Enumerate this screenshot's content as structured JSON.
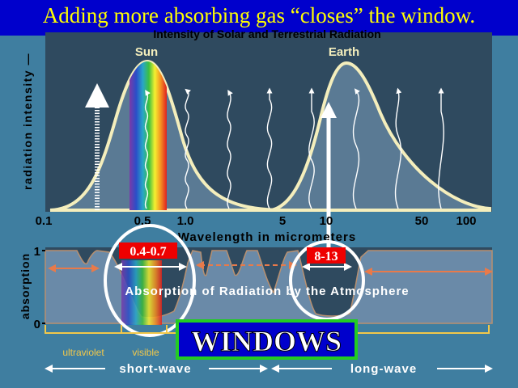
{
  "slide": {
    "title": "Adding more absorbing gas “closes” the window."
  },
  "radiation_panel": {
    "heading": "Intensity of Solar and Terrestrial Radiation",
    "y_axis_label": "radiation intensity —",
    "sun_label": "Sun",
    "earth_label": "Earth",
    "x_axis_label": "Wavelength in micrometers",
    "x_ticks": [
      "0.1",
      "0.5",
      "1.0",
      "5",
      "10",
      "50",
      "100"
    ]
  },
  "absorption_panel": {
    "heading": "Absorption of Radiation by the Atmosphere",
    "y_axis_label": "absorption",
    "y_ticks": [
      "1",
      "0"
    ]
  },
  "window_labels": {
    "visible_window": "0.4-0.7",
    "infrared_window": "8-13",
    "windows_banner": "WINDOWS"
  },
  "bands": {
    "ultraviolet": "ultraviolet",
    "visible": "visible",
    "short_wave": "short-wave",
    "long_wave": "long-wave"
  },
  "colors": {
    "background": "#3f7ea0",
    "panel": "#2f4a5f",
    "title_bar": "#0000cc",
    "title_text": "#ffff00",
    "curve_outline": "#f4eebc",
    "band_text": "#f2c84a",
    "arrow_orange": "#e87a4a",
    "label_red": "#ee0000",
    "windows_border": "#22cc22"
  }
}
